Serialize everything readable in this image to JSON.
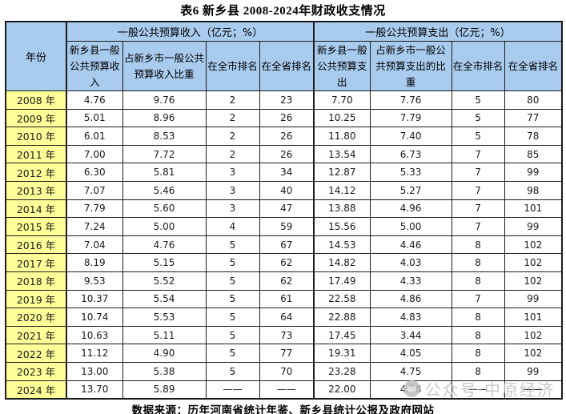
{
  "title": "表6 新乡县 2008-2024年财政收支情况",
  "source_note": "数据来源：历年河南省统计年鉴、新乡县统计公报及政府网站",
  "watermark": {
    "icon": "wechat-official-account-logo",
    "text": "公众号·中原经济"
  },
  "colors": {
    "header_bg": "#a8cbee",
    "year_bg": "#ffff99",
    "border": "#1c1c1c",
    "watermark": "#bfbfbf"
  },
  "chart_data": {
    "type": "table",
    "title": "表6 新乡县 2008-2024年财政收支情况",
    "year_column_header": "年份",
    "groups": [
      {
        "header": "一般公共预算收入（亿元；%）",
        "sub_columns": [
          "新乡县一般公共预算收入",
          "占新乡市一般公共预算收入比重",
          "在全市排名",
          "在全省排名"
        ]
      },
      {
        "header": "一般公共预算支出（亿元；%）",
        "sub_columns": [
          "新乡县一般公共预算支出",
          "占新乡市一般公共预算支出的比重",
          "在全市排名",
          "在全省排名"
        ]
      }
    ],
    "rows": [
      [
        "2008 年",
        "4.76",
        "9.76",
        "2",
        "23",
        "7.70",
        "7.76",
        "5",
        "80"
      ],
      [
        "2009 年",
        "5.01",
        "8.96",
        "2",
        "26",
        "10.25",
        "7.79",
        "5",
        "77"
      ],
      [
        "2010 年",
        "6.01",
        "8.53",
        "2",
        "26",
        "11.80",
        "7.40",
        "5",
        "78"
      ],
      [
        "2011 年",
        "7.00",
        "7.72",
        "2",
        "26",
        "13.54",
        "6.73",
        "7",
        "85"
      ],
      [
        "2012 年",
        "6.30",
        "5.81",
        "3",
        "34",
        "12.87",
        "5.33",
        "7",
        "99"
      ],
      [
        "2013 年",
        "7.07",
        "5.46",
        "3",
        "40",
        "14.12",
        "5.27",
        "7",
        "98"
      ],
      [
        "2014 年",
        "7.79",
        "5.60",
        "3",
        "47",
        "13.88",
        "4.96",
        "7",
        "101"
      ],
      [
        "2015 年",
        "7.24",
        "5.00",
        "4",
        "59",
        "15.56",
        "5.00",
        "7",
        "99"
      ],
      [
        "2016 年",
        "7.04",
        "4.76",
        "5",
        "67",
        "14.53",
        "4.46",
        "8",
        "102"
      ],
      [
        "2017 年",
        "8.19",
        "5.15",
        "5",
        "62",
        "14.82",
        "4.03",
        "8",
        "102"
      ],
      [
        "2018 年",
        "9.53",
        "5.52",
        "5",
        "62",
        "17.49",
        "4.33",
        "8",
        "102"
      ],
      [
        "2019 年",
        "10.37",
        "5.54",
        "5",
        "61",
        "22.58",
        "4.86",
        "7",
        "99"
      ],
      [
        "2020 年",
        "10.74",
        "5.53",
        "5",
        "64",
        "22.88",
        "4.83",
        "8",
        "101"
      ],
      [
        "2021 年",
        "10.63",
        "5.11",
        "5",
        "73",
        "17.45",
        "3.44",
        "8",
        "102"
      ],
      [
        "2022 年",
        "11.12",
        "4.90",
        "5",
        "77",
        "19.31",
        "4.05",
        "8",
        "102"
      ],
      [
        "2023 年",
        "13.00",
        "5.38",
        "5",
        "70",
        "23.28",
        "4.75",
        "8",
        "99"
      ],
      [
        "2024 年",
        "13.70",
        "5.89",
        "——",
        "——",
        "22.00",
        "4.58",
        "——",
        "——"
      ]
    ]
  }
}
